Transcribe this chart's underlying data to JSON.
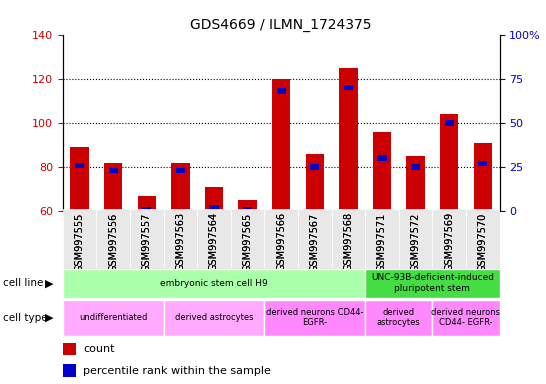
{
  "title": "GDS4669 / ILMN_1724375",
  "samples": [
    "GSM997555",
    "GSM997556",
    "GSM997557",
    "GSM997563",
    "GSM997564",
    "GSM997565",
    "GSM997566",
    "GSM997567",
    "GSM997568",
    "GSM997571",
    "GSM997572",
    "GSM997569",
    "GSM997570"
  ],
  "counts": [
    89,
    82,
    67,
    82,
    71,
    65,
    120,
    86,
    125,
    96,
    85,
    104,
    91
  ],
  "percentiles": [
    26,
    23,
    1,
    23,
    2,
    1,
    68,
    25,
    70,
    30,
    25,
    50,
    27
  ],
  "ylim_left": [
    60,
    140
  ],
  "ylim_right": [
    0,
    100
  ],
  "yticks_left": [
    60,
    80,
    100,
    120,
    140
  ],
  "yticks_right": [
    0,
    25,
    50,
    75,
    100
  ],
  "bar_color": "#cc0000",
  "percentile_color": "#0000cc",
  "cell_line_groups": [
    {
      "label": "embryonic stem cell H9",
      "start": 0,
      "end": 9,
      "color": "#aaffaa"
    },
    {
      "label": "UNC-93B-deficient-induced\npluripotent stem",
      "start": 9,
      "end": 13,
      "color": "#44dd44"
    }
  ],
  "cell_type_groups": [
    {
      "label": "undifferentiated",
      "start": 0,
      "end": 3,
      "color": "#ffaaff"
    },
    {
      "label": "derived astrocytes",
      "start": 3,
      "end": 6,
      "color": "#ffaaff"
    },
    {
      "label": "derived neurons CD44-\nEGFR-",
      "start": 6,
      "end": 9,
      "color": "#ff88ff"
    },
    {
      "label": "derived\nastrocytes",
      "start": 9,
      "end": 11,
      "color": "#ff88ff"
    },
    {
      "label": "derived neurons\nCD44- EGFR-",
      "start": 11,
      "end": 13,
      "color": "#ff88ff"
    }
  ],
  "left_axis_color": "#cc0000",
  "right_axis_color": "#0000cc",
  "background_color": "#ffffff",
  "grid_lines": [
    80,
    100,
    120
  ],
  "bar_width": 0.55
}
